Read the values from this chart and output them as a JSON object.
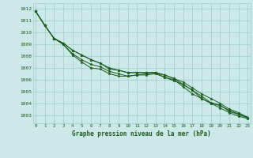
{
  "title": "Graphe pression niveau de la mer (hPa)",
  "bg_color": "#cce8e8",
  "grid_color": "#99cccc",
  "line_color": "#1a5c1a",
  "marker": "*",
  "xlim": [
    -0.3,
    23.3
  ],
  "ylim": [
    1002.3,
    1012.5
  ],
  "yticks": [
    1003,
    1004,
    1005,
    1006,
    1007,
    1008,
    1009,
    1010,
    1011,
    1012
  ],
  "xticks": [
    0,
    1,
    2,
    3,
    4,
    5,
    6,
    7,
    8,
    9,
    10,
    11,
    12,
    13,
    14,
    15,
    16,
    17,
    18,
    19,
    20,
    21,
    22,
    23
  ],
  "series": [
    [
      1011.8,
      1010.6,
      1009.5,
      1009.0,
      1008.2,
      1007.7,
      1007.3,
      1007.1,
      1006.7,
      1006.5,
      1006.3,
      1006.4,
      1006.4,
      1006.5,
      1006.2,
      1005.9,
      1005.6,
      1005.1,
      1004.4,
      1004.0,
      1003.6,
      1003.2,
      1002.9,
      1002.7
    ],
    [
      1011.8,
      1010.6,
      1009.5,
      1009.0,
      1008.1,
      1007.5,
      1007.0,
      1006.9,
      1006.5,
      1006.3,
      1006.3,
      1006.4,
      1006.5,
      1006.6,
      1006.2,
      1006.0,
      1005.4,
      1004.8,
      1004.4,
      1004.0,
      1003.8,
      1003.4,
      1003.1,
      1002.8
    ],
    [
      1011.8,
      1010.6,
      1009.5,
      1009.1,
      1008.5,
      1008.1,
      1007.7,
      1007.4,
      1006.9,
      1006.8,
      1006.6,
      1006.6,
      1006.6,
      1006.6,
      1006.4,
      1006.1,
      1005.8,
      1005.3,
      1004.8,
      1004.4,
      1004.0,
      1003.5,
      1003.2,
      1002.8
    ],
    [
      1011.8,
      1010.6,
      1009.5,
      1009.1,
      1008.5,
      1008.1,
      1007.7,
      1007.4,
      1007.0,
      1006.8,
      1006.6,
      1006.6,
      1006.6,
      1006.6,
      1006.4,
      1006.1,
      1005.6,
      1005.1,
      1004.6,
      1004.05,
      1003.85,
      1003.3,
      1003.05,
      1002.75
    ]
  ],
  "figsize": [
    3.2,
    2.0
  ],
  "dpi": 100
}
